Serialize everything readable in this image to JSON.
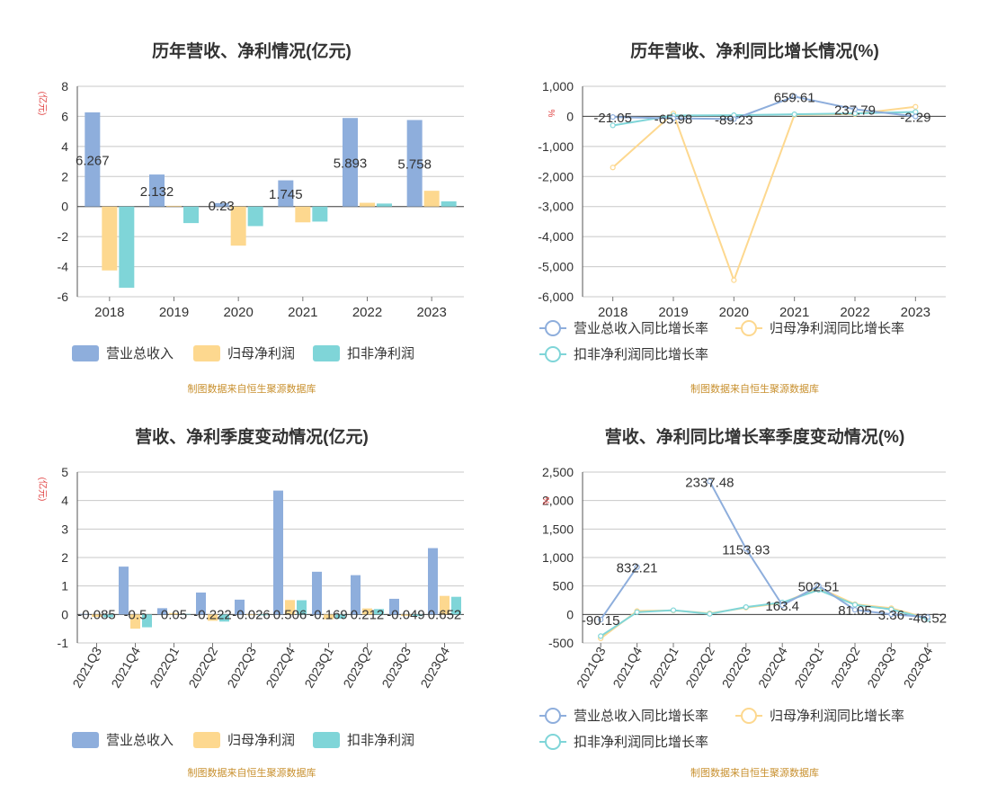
{
  "source_note": "制图数据来自恒生聚源数据库",
  "colors": {
    "revenue": "#8eaedc",
    "net_profit": "#fdd88f",
    "deducted_profit": "#7fd5d8",
    "axis_text": "#333333",
    "unit_label": "#e04040",
    "grid": "#c8c8c8"
  },
  "chart_data": [
    {
      "type": "bar",
      "title": "历年营收、净利情况(亿元)",
      "ylabel": "(亿元)",
      "categories": [
        "2018",
        "2019",
        "2020",
        "2021",
        "2022",
        "2023"
      ],
      "ylim": [
        -6,
        8
      ],
      "yticks": [
        -6,
        -4,
        -2,
        0,
        2,
        4,
        6,
        8
      ],
      "ytick_labels": [
        "-6",
        "-4",
        "-2",
        "0",
        "2",
        "4",
        "6",
        "8"
      ],
      "grid": true,
      "legend": "bottom",
      "series": [
        {
          "name": "营业总收入",
          "values": [
            6.267,
            2.132,
            0.23,
            1.745,
            5.893,
            5.758
          ],
          "labels": [
            "6.267",
            "2.132",
            "0.23",
            "1.745",
            "5.893",
            "5.758"
          ]
        },
        {
          "name": "归母净利润",
          "values": [
            -4.25,
            0.05,
            -2.6,
            -1.05,
            0.25,
            1.05
          ]
        },
        {
          "name": "扣非净利润",
          "values": [
            -5.4,
            -1.1,
            -1.3,
            -1.0,
            0.2,
            0.35
          ]
        }
      ]
    },
    {
      "type": "line",
      "title": "历年营收、净利同比增长情况(%)",
      "ylabel": "%",
      "categories": [
        "2018",
        "2019",
        "2020",
        "2021",
        "2022",
        "2023"
      ],
      "ylim": [
        -6000,
        1000
      ],
      "yticks": [
        -6000,
        -5000,
        -4000,
        -3000,
        -2000,
        -1000,
        0,
        1000
      ],
      "ytick_labels": [
        "-6,000",
        "-5,000",
        "-4,000",
        "-3,000",
        "-2,000",
        "-1,000",
        "0",
        "1,000"
      ],
      "grid": true,
      "legend": "bottom",
      "series": [
        {
          "name": "营业总收入同比增长率",
          "values": [
            -21.05,
            -65.98,
            -89.23,
            659.61,
            237.79,
            -2.29
          ],
          "labels": [
            "-21.05",
            "-65.98",
            "-89.23",
            "659.61",
            "237.79",
            "-2.29"
          ]
        },
        {
          "name": "归母净利润同比增长率",
          "values": [
            -1700,
            100,
            -5450,
            50,
            80,
            320
          ]
        },
        {
          "name": "扣非净利润同比增长率",
          "values": [
            -300,
            30,
            40,
            70,
            100,
            150
          ]
        }
      ]
    },
    {
      "type": "bar",
      "title": "营收、净利季度变动情况(亿元)",
      "ylabel": "(亿元)",
      "categories": [
        "2021Q3",
        "2021Q4",
        "2022Q1",
        "2022Q2",
        "2022Q3",
        "2022Q4",
        "2023Q1",
        "2023Q2",
        "2023Q3",
        "2023Q4"
      ],
      "ylim": [
        -1,
        5
      ],
      "yticks": [
        -1,
        0,
        1,
        2,
        3,
        4,
        5
      ],
      "ytick_labels": [
        "-1",
        "0",
        "1",
        "2",
        "3",
        "4",
        "5"
      ],
      "grid": true,
      "legend": "bottom",
      "series": [
        {
          "name": "营业总收入",
          "values": [
            0.02,
            1.68,
            0.22,
            0.77,
            0.52,
            4.35,
            1.5,
            1.38,
            0.55,
            2.33
          ]
        },
        {
          "name": "归母净利润",
          "values": [
            -0.085,
            -0.5,
            0.05,
            -0.222,
            -0.026,
            0.506,
            -0.169,
            0.212,
            -0.049,
            0.652
          ],
          "labels": [
            "-0.085",
            "-0.5",
            "0.05",
            "-0.222",
            "-0.026",
            "0.506",
            "-0.169",
            "0.212",
            "-0.049",
            "0.652"
          ]
        },
        {
          "name": "扣非净利润",
          "values": [
            -0.1,
            -0.45,
            0.02,
            -0.25,
            -0.03,
            0.5,
            -0.15,
            0.19,
            -0.06,
            0.62
          ]
        }
      ]
    },
    {
      "type": "line",
      "title": "营收、净利同比增长率季度变动情况(%)",
      "ylabel": "%",
      "categories": [
        "2021Q3",
        "2021Q4",
        "2022Q1",
        "2022Q2",
        "2022Q3",
        "2022Q4",
        "2023Q1",
        "2023Q2",
        "2023Q3",
        "2023Q4"
      ],
      "ylim": [
        -500,
        2500
      ],
      "yticks": [
        -500,
        0,
        500,
        1000,
        1500,
        2000,
        2500
      ],
      "ytick_labels": [
        "-500",
        "0",
        "500",
        "1,000",
        "1,500",
        "2,000",
        "2,500"
      ],
      "grid": true,
      "legend": "bottom",
      "series": [
        {
          "name": "营业总收入同比增长率",
          "values": [
            -90.15,
            832.21,
            null,
            2337.48,
            1153.93,
            163.4,
            502.51,
            81.05,
            3.36,
            -46.52
          ],
          "labels": [
            "-90.15",
            "832.21",
            "",
            "2337.48",
            "1153.93",
            "163.4",
            "502.51",
            "81.05",
            "3.36",
            "-46.52"
          ]
        },
        {
          "name": "归母净利润同比增长率",
          "values": [
            -420,
            60,
            70,
            20,
            120,
            200,
            470,
            180,
            110,
            -70
          ]
        },
        {
          "name": "扣非净利润同比增长率",
          "values": [
            -380,
            40,
            75,
            10,
            130,
            210,
            430,
            170,
            90,
            -80
          ]
        }
      ]
    }
  ]
}
